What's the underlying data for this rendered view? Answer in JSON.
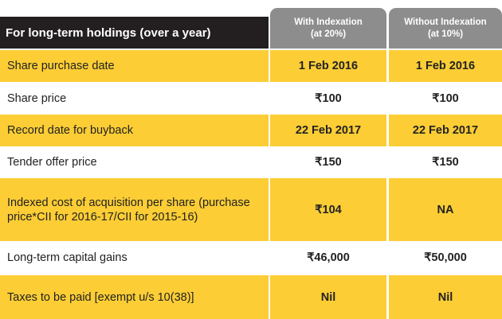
{
  "header": {
    "title": "For long-term holdings (over a year)",
    "columns": [
      {
        "label": "With Indexation",
        "sublabel": "(at 20%)"
      },
      {
        "label": "Without Indexation",
        "sublabel": "(at 10%)"
      }
    ]
  },
  "rows": [
    {
      "label": "Share purchase date",
      "with": "1 Feb 2016",
      "without": "1 Feb 2016"
    },
    {
      "label": "Share price",
      "with": "₹100",
      "without": "₹100"
    },
    {
      "label": "Record date for buyback",
      "with": "22 Feb 2017",
      "without": "22 Feb 2017"
    },
    {
      "label": "Tender offer price",
      "with": "₹150",
      "without": "₹150"
    },
    {
      "label": "Indexed cost of acquisition per share (purchase price*CII for 2016-17/CII for 2015-16)",
      "with": "₹104",
      "without": "NA"
    },
    {
      "label": "Long-term capital gains",
      "with": "₹46,000",
      "without": "₹50,000"
    },
    {
      "label": "Taxes to be paid [exempt u/s 10(38)]",
      "with": "Nil",
      "without": "Nil"
    }
  ],
  "colors": {
    "header_bg": "#231f20",
    "tab_bg": "#8d8d8d",
    "highlight": "#fccd35"
  }
}
